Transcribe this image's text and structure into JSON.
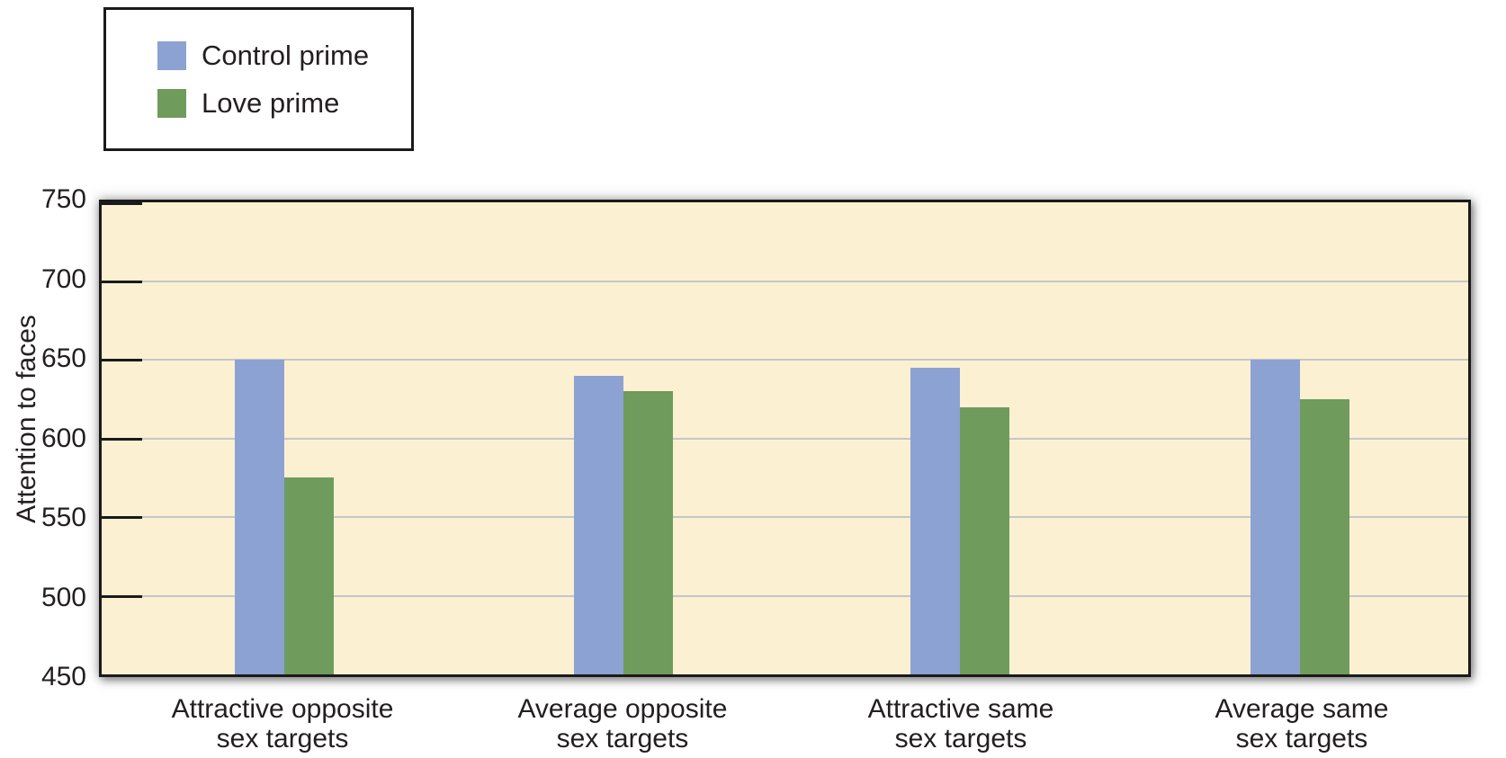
{
  "chart_data": {
    "type": "bar",
    "title": "",
    "ylabel": "Attention to faces",
    "xlabel": "",
    "ylim": [
      450,
      750
    ],
    "ytick_step": 50,
    "yticks": [
      750,
      700,
      650,
      600,
      550,
      500,
      450
    ],
    "grid": true,
    "legend_position": "top-left",
    "plot_background": "#FBF0D2",
    "gridline_color": "#C6C6C6",
    "axis_color": "#1A1A1A",
    "text_color": "#231F20",
    "categories": [
      {
        "label": "Attractive opposite sex targets",
        "lines": [
          "Attractive opposite",
          "sex targets"
        ]
      },
      {
        "label": "Average opposite sex targets",
        "lines": [
          "Average opposite",
          "sex targets"
        ]
      },
      {
        "label": "Attractive same sex targets",
        "lines": [
          "Attractive same",
          "sex targets"
        ]
      },
      {
        "label": "Average same sex targets",
        "lines": [
          "Average same",
          "sex targets"
        ]
      }
    ],
    "series": [
      {
        "name": "Control prime",
        "color": "#8CA2D3",
        "values": [
          650,
          640,
          645,
          650
        ]
      },
      {
        "name": "Love prime",
        "color": "#6F9B5D",
        "values": [
          575,
          630,
          620,
          625
        ]
      }
    ]
  }
}
